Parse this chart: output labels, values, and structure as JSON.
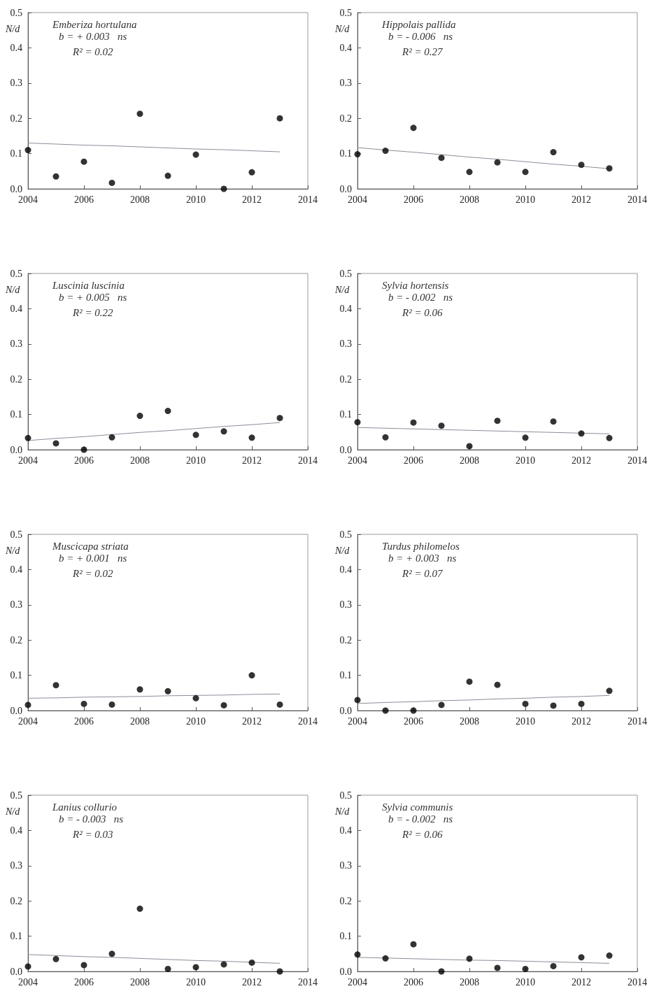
{
  "chart_data": [
    {
      "type": "scatter",
      "title": "Emberiza hortulana",
      "annotations": [
        "b = + 0.003   ns",
        "R² = 0.02"
      ],
      "ylabel": "N/d",
      "x": [
        2004,
        2005,
        2006,
        2007,
        2008,
        2009,
        2010,
        2011,
        2012,
        2013
      ],
      "series": [
        {
          "type": "scatter",
          "color": "#000000",
          "values": [
            0.11,
            0.035,
            0.077,
            0.017,
            0.213,
            0.037,
            0.097,
            0.0,
            0.047,
            0.2
          ]
        },
        {
          "type": "line",
          "color": "#8c8c9a",
          "values": [
            0.13,
            0.127,
            0.124,
            0.122,
            0.119,
            0.116,
            0.113,
            0.111,
            0.108,
            0.105
          ],
          "marker": "none"
        }
      ],
      "xlim": [
        2004,
        2014
      ],
      "ylim": [
        0,
        0.5
      ],
      "xticks": [
        2004,
        2006,
        2008,
        2010,
        2012,
        2014
      ],
      "yticks": [
        {
          "value": 0,
          "label": "0.0"
        },
        {
          "value": 0.1,
          "label": "0.1"
        },
        {
          "value": 0.2,
          "label": "0.2"
        },
        {
          "value": 0.3,
          "label": "0.3"
        },
        {
          "value": 0.4,
          "label": "0.4"
        },
        {
          "value": 0.5,
          "label": "0.5"
        }
      ],
      "marker": "circle",
      "grid": false
    },
    {
      "type": "scatter",
      "title": "Hippolais pallida",
      "annotations": [
        "b = - 0.006   ns",
        "R² = 0.27"
      ],
      "ylabel": "N/d",
      "x": [
        2004,
        2005,
        2006,
        2007,
        2008,
        2009,
        2010,
        2011,
        2012,
        2013
      ],
      "series": [
        {
          "type": "scatter",
          "color": "#000000",
          "values": [
            0.098,
            0.108,
            0.173,
            0.088,
            0.048,
            0.075,
            0.048,
            0.104,
            0.068,
            0.058
          ]
        },
        {
          "type": "line",
          "color": "#8c8c9a",
          "values": [
            0.117,
            0.11,
            0.104,
            0.097,
            0.09,
            0.084,
            0.077,
            0.07,
            0.064,
            0.057
          ],
          "marker": "none"
        }
      ],
      "xlim": [
        2004,
        2014
      ],
      "ylim": [
        0,
        0.5
      ],
      "xticks": [
        2004,
        2006,
        2008,
        2010,
        2012,
        2014
      ],
      "yticks": [
        {
          "value": 0,
          "label": "0.0"
        },
        {
          "value": 0.1,
          "label": "0.1"
        },
        {
          "value": 0.2,
          "label": "0.2"
        },
        {
          "value": 0.3,
          "label": "0.3"
        },
        {
          "value": 0.4,
          "label": "0.4"
        },
        {
          "value": 0.5,
          "label": "0.5"
        }
      ],
      "marker": "circle",
      "grid": false
    },
    {
      "type": "scatter",
      "title": "Luscinia luscinia",
      "annotations": [
        "b = + 0.005   ns",
        "R² = 0.22"
      ],
      "ylabel": "N/d",
      "x": [
        2004,
        2005,
        2006,
        2007,
        2008,
        2009,
        2010,
        2011,
        2012,
        2013
      ],
      "series": [
        {
          "type": "scatter",
          "color": "#000000",
          "values": [
            0.033,
            0.018,
            0.0,
            0.035,
            0.096,
            0.11,
            0.042,
            0.052,
            0.034,
            0.09
          ]
        },
        {
          "type": "line",
          "color": "#8c8c9a",
          "values": [
            0.026,
            0.032,
            0.037,
            0.043,
            0.049,
            0.054,
            0.06,
            0.066,
            0.071,
            0.077
          ],
          "marker": "none"
        }
      ],
      "xlim": [
        2004,
        2014
      ],
      "ylim": [
        0,
        0.5
      ],
      "xticks": [
        2004,
        2006,
        2008,
        2010,
        2012,
        2014
      ],
      "yticks": [
        {
          "value": 0,
          "label": "0.0"
        },
        {
          "value": 0.1,
          "label": "0.1"
        },
        {
          "value": 0.2,
          "label": "0.2"
        },
        {
          "value": 0.3,
          "label": "0.3"
        },
        {
          "value": 0.4,
          "label": "0.4"
        },
        {
          "value": 0.5,
          "label": "0.5"
        }
      ],
      "marker": "circle",
      "grid": false
    },
    {
      "type": "scatter",
      "title": "Sylvia hortensis",
      "annotations": [
        "b = - 0.002   ns",
        "R² = 0.06"
      ],
      "ylabel": "N/d",
      "x": [
        2004,
        2005,
        2006,
        2007,
        2008,
        2009,
        2010,
        2011,
        2012,
        2013
      ],
      "series": [
        {
          "type": "scatter",
          "color": "#000000",
          "values": [
            0.078,
            0.035,
            0.077,
            0.068,
            0.01,
            0.082,
            0.034,
            0.08,
            0.046,
            0.033
          ]
        },
        {
          "type": "line",
          "color": "#8c8c9a",
          "values": [
            0.063,
            0.061,
            0.059,
            0.057,
            0.055,
            0.053,
            0.051,
            0.049,
            0.047,
            0.045
          ],
          "marker": "none"
        }
      ],
      "xlim": [
        2004,
        2014
      ],
      "ylim": [
        0,
        0.5
      ],
      "xticks": [
        2004,
        2006,
        2008,
        2010,
        2012,
        2014
      ],
      "yticks": [
        {
          "value": 0,
          "label": "0.0"
        },
        {
          "value": 0.1,
          "label": "0.1"
        },
        {
          "value": 0.2,
          "label": "0.2"
        },
        {
          "value": 0.3,
          "label": "0.3"
        },
        {
          "value": 0.4,
          "label": "0.4"
        },
        {
          "value": 0.5,
          "label": "0.5"
        }
      ],
      "marker": "circle",
      "grid": false
    },
    {
      "type": "scatter",
      "title": "Muscicapa striata",
      "annotations": [
        "b = + 0.001   ns",
        "R² = 0.02"
      ],
      "ylabel": "N/d",
      "x": [
        2004,
        2005,
        2006,
        2007,
        2008,
        2009,
        2010,
        2011,
        2012,
        2013
      ],
      "series": [
        {
          "type": "scatter",
          "color": "#000000",
          "values": [
            0.016,
            0.072,
            0.019,
            0.017,
            0.06,
            0.055,
            0.035,
            0.015,
            0.1,
            0.017
          ]
        },
        {
          "type": "line",
          "color": "#8c8c9a",
          "values": [
            0.035,
            0.036,
            0.038,
            0.039,
            0.04,
            0.042,
            0.043,
            0.044,
            0.046,
            0.047
          ],
          "marker": "none"
        }
      ],
      "xlim": [
        2004,
        2014
      ],
      "ylim": [
        0,
        0.5
      ],
      "xticks": [
        2004,
        2006,
        2008,
        2010,
        2012,
        2014
      ],
      "yticks": [
        {
          "value": 0,
          "label": "0.0"
        },
        {
          "value": 0.1,
          "label": "0.1"
        },
        {
          "value": 0.2,
          "label": "0.2"
        },
        {
          "value": 0.3,
          "label": "0.3"
        },
        {
          "value": 0.4,
          "label": "0.4"
        },
        {
          "value": 0.5,
          "label": "0.5"
        }
      ],
      "marker": "circle",
      "grid": false
    },
    {
      "type": "scatter",
      "title": "Turdus philomelos",
      "annotations": [
        "b = + 0.003   ns",
        "R² = 0.07"
      ],
      "ylabel": "N/d",
      "x": [
        2004,
        2005,
        2006,
        2007,
        2008,
        2009,
        2010,
        2011,
        2012,
        2013
      ],
      "series": [
        {
          "type": "scatter",
          "color": "#000000",
          "values": [
            0.03,
            0.0,
            0.0,
            0.016,
            0.082,
            0.073,
            0.019,
            0.014,
            0.019,
            0.056
          ]
        },
        {
          "type": "line",
          "color": "#8c8c9a",
          "values": [
            0.02,
            0.023,
            0.025,
            0.028,
            0.03,
            0.033,
            0.035,
            0.038,
            0.04,
            0.043
          ],
          "marker": "none"
        }
      ],
      "xlim": [
        2004,
        2014
      ],
      "ylim": [
        0,
        0.5
      ],
      "xticks": [
        2004,
        2006,
        2008,
        2010,
        2012,
        2014
      ],
      "yticks": [
        {
          "value": 0,
          "label": "0.0"
        },
        {
          "value": 0.1,
          "label": "0.1"
        },
        {
          "value": 0.2,
          "label": "0.2"
        },
        {
          "value": 0.3,
          "label": "0.3"
        },
        {
          "value": 0.4,
          "label": "0.4"
        },
        {
          "value": 0.5,
          "label": "0.5"
        }
      ],
      "marker": "circle",
      "grid": false
    },
    {
      "type": "scatter",
      "title": "Lanius collurio",
      "annotations": [
        "b = - 0.003   ns",
        "R² = 0.03"
      ],
      "ylabel": "N/d",
      "x": [
        2004,
        2005,
        2006,
        2007,
        2008,
        2009,
        2010,
        2011,
        2012,
        2013
      ],
      "series": [
        {
          "type": "scatter",
          "color": "#000000",
          "values": [
            0.014,
            0.035,
            0.018,
            0.05,
            0.178,
            0.007,
            0.012,
            0.02,
            0.025,
            0.0
          ]
        },
        {
          "type": "line",
          "color": "#8c8c9a",
          "values": [
            0.048,
            0.045,
            0.042,
            0.04,
            0.037,
            0.034,
            0.031,
            0.029,
            0.026,
            0.023
          ],
          "marker": "none"
        }
      ],
      "xlim": [
        2004,
        2014
      ],
      "ylim": [
        0,
        0.5
      ],
      "xticks": [
        2004,
        2006,
        2008,
        2010,
        2012,
        2014
      ],
      "yticks": [
        {
          "value": 0,
          "label": "0.0"
        },
        {
          "value": 0.1,
          "label": "0.1"
        },
        {
          "value": 0.2,
          "label": "0.2"
        },
        {
          "value": 0.3,
          "label": "0.3"
        },
        {
          "value": 0.4,
          "label": "0.4"
        },
        {
          "value": 0.5,
          "label": "0.5"
        }
      ],
      "marker": "circle",
      "grid": false
    },
    {
      "type": "scatter",
      "title": "Sylvia communis",
      "annotations": [
        "b = - 0.002   ns",
        "R² = 0.06"
      ],
      "ylabel": "N/d",
      "x": [
        2004,
        2005,
        2006,
        2007,
        2008,
        2009,
        2010,
        2011,
        2012,
        2013
      ],
      "series": [
        {
          "type": "scatter",
          "color": "#000000",
          "values": [
            0.048,
            0.037,
            0.077,
            0.0,
            0.036,
            0.01,
            0.007,
            0.015,
            0.04,
            0.045
          ]
        },
        {
          "type": "line",
          "color": "#8c8c9a",
          "values": [
            0.04,
            0.038,
            0.036,
            0.034,
            0.032,
            0.031,
            0.029,
            0.027,
            0.025,
            0.023
          ],
          "marker": "none"
        }
      ],
      "xlim": [
        2004,
        2014
      ],
      "ylim": [
        0,
        0.5
      ],
      "xticks": [
        2004,
        2006,
        2008,
        2010,
        2012,
        2014
      ],
      "yticks": [
        {
          "value": 0,
          "label": "0.0"
        },
        {
          "value": 0.1,
          "label": "0.1"
        },
        {
          "value": 0.2,
          "label": "0.2"
        },
        {
          "value": 0.3,
          "label": "0.3"
        },
        {
          "value": 0.4,
          "label": "0.4"
        },
        {
          "value": 0.5,
          "label": "0.5"
        }
      ],
      "marker": "circle",
      "grid": false
    }
  ]
}
